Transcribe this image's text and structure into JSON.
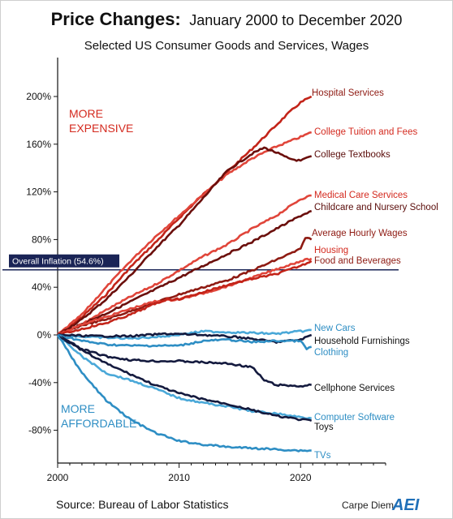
{
  "chart_data": {
    "type": "line",
    "title": "Price Changes:",
    "title_range": "January 2000 to December 2020",
    "subtitle": "Selected US Consumer Goods and Services, Wages",
    "source": "Source: Bureau of Labor Statistics",
    "brand_text": "Carpe Diem",
    "brand_logo": "AEI",
    "annotation_top": [
      "MORE",
      "EXPENSIVE"
    ],
    "annotation_bottom": [
      "MORE",
      "AFFORDABLE"
    ],
    "xlim": [
      2000,
      2027
    ],
    "ylim": [
      -120,
      220
    ],
    "x_ticks": [
      2000,
      2010,
      2020
    ],
    "y_ticks": [
      -80,
      -40,
      0,
      40,
      80,
      120,
      160,
      200
    ],
    "y_tick_suffix": "%",
    "reference_line": {
      "label": "Overall Inflation (54.6%)",
      "value": 54.6,
      "color": "#1a2456"
    },
    "colors": {
      "annot_top": "#d42a1f",
      "annot_bottom": "#2e8ec4",
      "axis": "#111111"
    },
    "series": [
      {
        "name": "Hospital Services",
        "color": "#c32419",
        "label_color": "#8e1a12",
        "x": [
          2000,
          2002,
          2004,
          2006,
          2008,
          2010,
          2012,
          2014,
          2016,
          2018,
          2019,
          2020,
          2020.9
        ],
        "values": [
          0,
          15,
          34,
          57,
          77,
          98,
          118,
          137,
          156,
          176,
          186,
          195,
          200
        ]
      },
      {
        "name": "College Tuition and Fees",
        "color": "#e0453a",
        "label_color": "#d42a1f",
        "x": [
          2000,
          2002,
          2004,
          2006,
          2008,
          2010,
          2012,
          2014,
          2016,
          2018,
          2020,
          2020.9
        ],
        "values": [
          0,
          17,
          40,
          62,
          82,
          100,
          118,
          135,
          148,
          158,
          166,
          170
        ]
      },
      {
        "name": "College Textbooks",
        "color": "#6b0f0c",
        "label_color": "#5a0c0a",
        "x": [
          2000,
          2002,
          2004,
          2006,
          2008,
          2010,
          2012,
          2014,
          2016,
          2017,
          2018,
          2019,
          2020,
          2020.9
        ],
        "values": [
          0,
          13,
          30,
          50,
          72,
          92,
          115,
          138,
          152,
          157,
          153,
          148,
          146,
          150
        ]
      },
      {
        "name": "Medical Care Services",
        "color": "#e0453a",
        "label_color": "#d42a1f",
        "x": [
          2000,
          2002,
          2004,
          2006,
          2008,
          2010,
          2012,
          2014,
          2016,
          2018,
          2020,
          2020.9
        ],
        "values": [
          0,
          9,
          21,
          32,
          42,
          54,
          66,
          76,
          89,
          100,
          114,
          117
        ]
      },
      {
        "name": "Childcare and Nursery School",
        "color": "#6b0f0c",
        "label_color": "#5a0c0a",
        "x": [
          2000,
          2002,
          2004,
          2006,
          2008,
          2010,
          2012,
          2014,
          2016,
          2018,
          2020,
          2020.9
        ],
        "values": [
          0,
          9,
          18,
          28,
          38,
          48,
          58,
          68,
          78,
          89,
          100,
          104
        ]
      },
      {
        "name": "Average Hourly Wages",
        "color": "#8e1a12",
        "label_color": "#8e1a12",
        "x": [
          2000,
          2002,
          2004,
          2006,
          2008,
          2010,
          2012,
          2014,
          2016,
          2018,
          2020,
          2020.4,
          2020.9
        ],
        "values": [
          0,
          8,
          13,
          20,
          27,
          34,
          40,
          46,
          54,
          63,
          72,
          82,
          80
        ]
      },
      {
        "name": "Housing",
        "color": "#e0453a",
        "label_color": "#d42a1f",
        "x": [
          2000,
          2002,
          2004,
          2006,
          2008,
          2010,
          2012,
          2014,
          2016,
          2018,
          2020,
          2020.9
        ],
        "values": [
          0,
          9,
          15,
          22,
          28,
          30,
          35,
          41,
          48,
          55,
          62,
          64
        ]
      },
      {
        "name": "Food and Beverages",
        "color": "#c32419",
        "label_color": "#8e1a12",
        "x": [
          2000,
          2002,
          2004,
          2006,
          2008,
          2009,
          2010,
          2012,
          2014,
          2016,
          2018,
          2020,
          2020.9
        ],
        "values": [
          0,
          5,
          10,
          17,
          26,
          30,
          30,
          36,
          42,
          47,
          51,
          58,
          62
        ]
      },
      {
        "name": "New Cars",
        "color": "#4aa8d8",
        "label_color": "#2e8ec4",
        "x": [
          2000,
          2003,
          2006,
          2009,
          2012,
          2015,
          2018,
          2020,
          2020.9
        ],
        "values": [
          0,
          -2,
          -3,
          -1,
          3,
          2,
          1,
          3,
          4
        ]
      },
      {
        "name": "Household Furnishings",
        "color": "#141a3e",
        "label_color": "#111111",
        "x": [
          2000,
          2003,
          2006,
          2009,
          2012,
          2015,
          2018,
          2020,
          2020.9
        ],
        "values": [
          0,
          -1,
          -1,
          1,
          0,
          -2,
          -6,
          -4,
          0
        ]
      },
      {
        "name": "Clothing",
        "color": "#2e8ec4",
        "label_color": "#2e8ec4",
        "x": [
          2000,
          2002,
          2004,
          2006,
          2008,
          2010,
          2012,
          2014,
          2016,
          2018,
          2020,
          2020.5,
          2020.9
        ],
        "values": [
          0,
          -5,
          -8,
          -9,
          -9,
          -9,
          -5,
          -4,
          -6,
          -5,
          -5,
          -12,
          -10
        ]
      },
      {
        "name": "Cellphone Services",
        "color": "#141a3e",
        "label_color": "#111111",
        "x": [
          2000,
          2002,
          2004,
          2006,
          2008,
          2010,
          2012,
          2014,
          2016,
          2017,
          2018,
          2020,
          2020.9
        ],
        "values": [
          0,
          -12,
          -18,
          -21,
          -22,
          -22,
          -23,
          -24,
          -27,
          -38,
          -42,
          -43,
          -42
        ]
      },
      {
        "name": "Computer Software",
        "color": "#4aa8d8",
        "label_color": "#2e8ec4",
        "x": [
          2000,
          2002,
          2004,
          2006,
          2008,
          2010,
          2012,
          2014,
          2016,
          2018,
          2020,
          2020.9
        ],
        "values": [
          0,
          -18,
          -32,
          -38,
          -45,
          -53,
          -57,
          -60,
          -64,
          -66,
          -69,
          -70
        ]
      },
      {
        "name": "Toys",
        "color": "#141a3e",
        "label_color": "#111111",
        "x": [
          2000,
          2002,
          2004,
          2006,
          2008,
          2010,
          2012,
          2014,
          2016,
          2018,
          2020,
          2020.9
        ],
        "values": [
          0,
          -13,
          -24,
          -33,
          -42,
          -49,
          -54,
          -58,
          -63,
          -68,
          -71,
          -72
        ]
      },
      {
        "name": "TVs",
        "color": "#2e8ec4",
        "label_color": "#2e8ec4",
        "x": [
          2000,
          2002,
          2004,
          2006,
          2008,
          2010,
          2012,
          2014,
          2016,
          2018,
          2020,
          2020.9
        ],
        "values": [
          0,
          -32,
          -55,
          -71,
          -82,
          -89,
          -92,
          -94,
          -95,
          -96,
          -97,
          -97
        ]
      }
    ]
  }
}
